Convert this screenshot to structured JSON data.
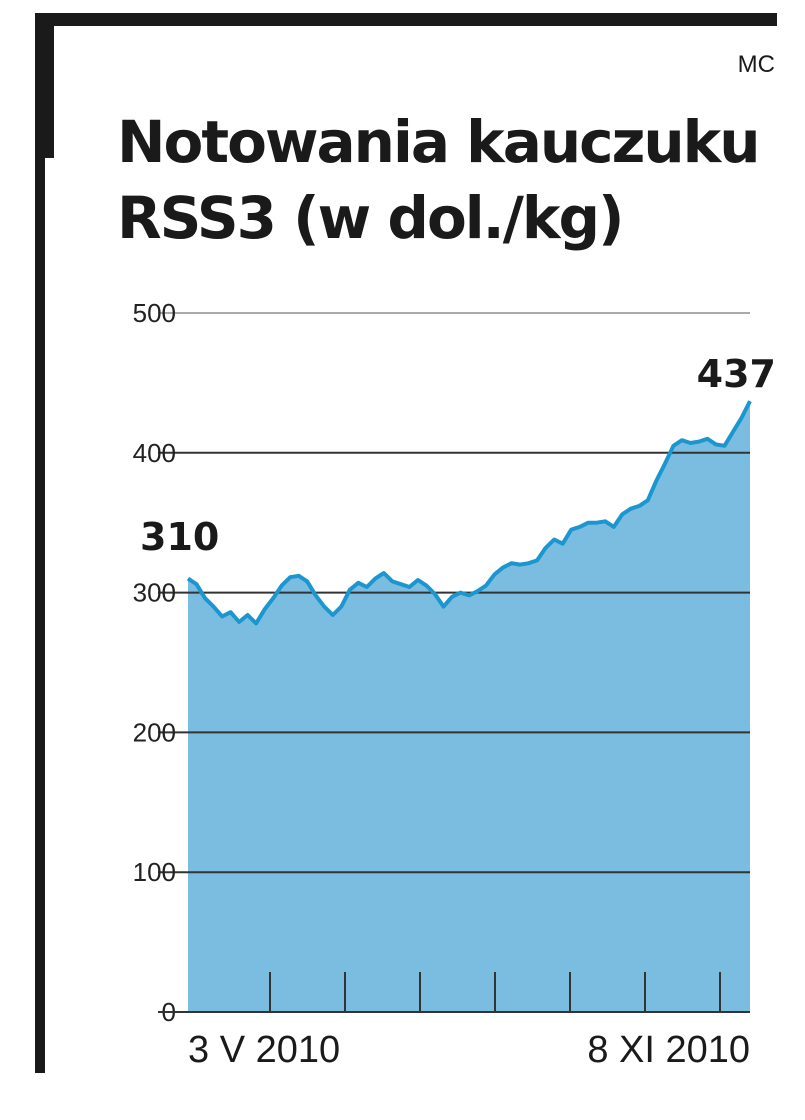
{
  "credit": "MC",
  "title": {
    "line1": "Notowania kauczuku",
    "line2": "RSS3 (w dol./kg)"
  },
  "colors": {
    "frame": "#1a1a1a",
    "fill": "#7bbde0",
    "line": "#1c96cf",
    "grid": "#333333",
    "grid_light": "#aaaaaa"
  },
  "chart_data": {
    "type": "area",
    "title": "Notowania kauczuku RSS3 (w dol./kg)",
    "xlabel": "",
    "ylabel": "",
    "ylim": [
      0,
      500
    ],
    "yticks": [
      "0",
      "100",
      "200",
      "300",
      "400",
      "500"
    ],
    "xtick_labels": [
      "3 V 2010",
      "8 XI 2010"
    ],
    "grid": true,
    "annotations": [
      {
        "text": "310",
        "ref": "first"
      },
      {
        "text": "437",
        "ref": "last"
      }
    ],
    "series": [
      {
        "values": [
          310,
          306,
          296,
          290,
          283,
          286,
          279,
          284,
          278,
          288,
          296,
          305,
          311,
          312,
          308,
          298,
          290,
          284,
          290,
          302,
          307,
          304,
          310,
          314,
          308,
          306,
          304,
          309,
          305,
          299,
          290,
          297,
          300,
          298,
          301,
          305,
          313,
          318,
          321,
          320,
          321,
          323,
          332,
          338,
          335,
          345,
          347,
          350,
          350,
          351,
          347,
          356,
          360,
          362,
          366,
          380,
          392,
          405,
          409,
          407,
          408,
          410,
          406,
          405,
          415,
          425,
          437
        ]
      }
    ]
  }
}
